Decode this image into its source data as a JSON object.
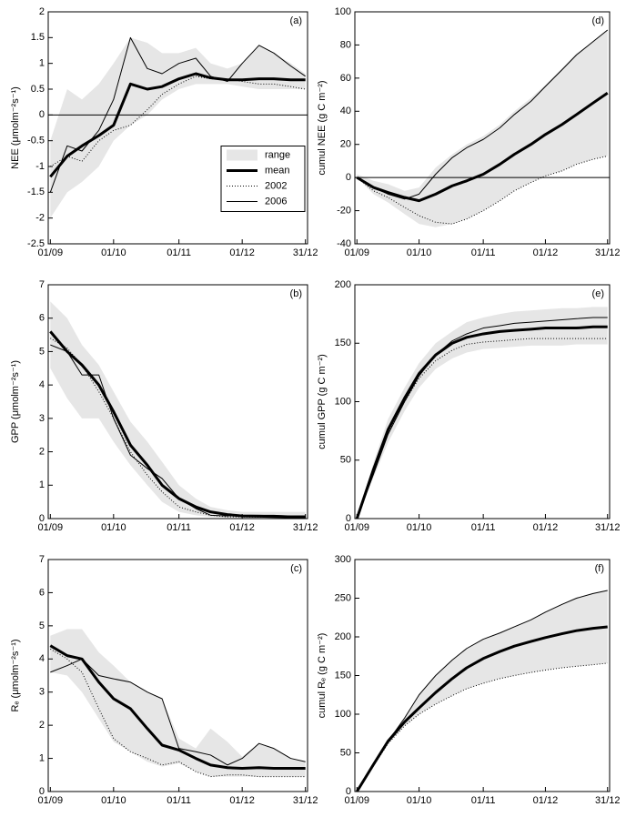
{
  "chart_data": [
    {
      "type": "line",
      "annotation": "(a)",
      "ylabel": "NEE (μmolm⁻²s⁻¹)",
      "legend": "center right",
      "hline": 0,
      "x": [
        0,
        8,
        15,
        23,
        30,
        38,
        46,
        53,
        61,
        69,
        76,
        84,
        91,
        99,
        106,
        114,
        121
      ],
      "xlim": [
        -1,
        122
      ],
      "xticks": [
        {
          "value": 0,
          "label": "01/09"
        },
        {
          "value": 30,
          "label": "01/10"
        },
        {
          "value": 61,
          "label": "01/11"
        },
        {
          "value": 91,
          "label": "01/12"
        },
        {
          "value": 121,
          "label": "31/12"
        }
      ],
      "ylim": [
        -2.5,
        2
      ],
      "yticks": [
        -2.5,
        -2,
        -1.5,
        -1,
        -0.5,
        0,
        0.5,
        1,
        1.5,
        2
      ],
      "series": [
        {
          "name": "range",
          "color": "#e6e6e6",
          "lower": [
            -2.0,
            -1.5,
            -1.3,
            -1.0,
            -0.5,
            -0.2,
            0.0,
            0.3,
            0.5,
            0.6,
            0.6,
            0.6,
            0.55,
            0.5,
            0.5,
            0.5,
            0.5
          ],
          "upper": [
            -0.5,
            0.5,
            0.3,
            0.6,
            1.0,
            1.5,
            1.4,
            1.2,
            1.2,
            1.3,
            1.0,
            0.9,
            1.0,
            1.35,
            1.2,
            1.0,
            0.8
          ]
        },
        {
          "name": "mean",
          "color": "#000000",
          "width": 3,
          "values": [
            -1.2,
            -0.8,
            -0.6,
            -0.4,
            -0.2,
            0.6,
            0.5,
            0.55,
            0.7,
            0.8,
            0.72,
            0.68,
            0.68,
            0.7,
            0.7,
            0.68,
            0.68
          ]
        },
        {
          "name": "2002",
          "color": "#000000",
          "width": 1,
          "dash": "dotted",
          "values": [
            -1.0,
            -0.8,
            -0.9,
            -0.5,
            -0.3,
            -0.2,
            0.1,
            0.4,
            0.6,
            0.75,
            0.7,
            0.7,
            0.65,
            0.6,
            0.6,
            0.55,
            0.5
          ]
        },
        {
          "name": "2006",
          "color": "#000000",
          "width": 1,
          "values": [
            -1.5,
            -0.6,
            -0.7,
            -0.3,
            0.3,
            1.5,
            0.9,
            0.8,
            1.0,
            1.1,
            0.75,
            0.65,
            1.0,
            1.35,
            1.2,
            0.95,
            0.75
          ]
        }
      ]
    },
    {
      "type": "line",
      "annotation": "(b)",
      "ylabel": "GPP (μmolm⁻²s⁻¹)",
      "x": [
        0,
        8,
        15,
        23,
        30,
        38,
        46,
        53,
        61,
        69,
        76,
        84,
        91,
        99,
        106,
        114,
        121
      ],
      "xlim": [
        -1,
        122
      ],
      "xticks": [
        {
          "value": 0,
          "label": "01/09"
        },
        {
          "value": 30,
          "label": "01/10"
        },
        {
          "value": 61,
          "label": "01/11"
        },
        {
          "value": 91,
          "label": "01/12"
        },
        {
          "value": 121,
          "label": "31/12"
        }
      ],
      "ylim": [
        0,
        7
      ],
      "yticks": [
        0,
        1,
        2,
        3,
        4,
        5,
        6,
        7
      ],
      "series": [
        {
          "name": "range",
          "color": "#e6e6e6",
          "lower": [
            4.5,
            3.6,
            3.0,
            3.0,
            2.3,
            1.6,
            1.0,
            0.5,
            0.2,
            0.1,
            0.05,
            0.03,
            0.02,
            0.02,
            0.02,
            0.02,
            0.02
          ],
          "upper": [
            6.5,
            6.0,
            5.2,
            4.6,
            3.8,
            2.9,
            2.3,
            1.7,
            1.0,
            0.6,
            0.35,
            0.25,
            0.2,
            0.2,
            0.2,
            0.2,
            0.2
          ]
        },
        {
          "name": "mean",
          "color": "#000000",
          "width": 3,
          "values": [
            5.6,
            5.0,
            4.6,
            4.0,
            3.2,
            2.2,
            1.6,
            1.0,
            0.6,
            0.35,
            0.2,
            0.12,
            0.08,
            0.07,
            0.06,
            0.05,
            0.05
          ]
        },
        {
          "name": "2002",
          "color": "#000000",
          "width": 1,
          "dash": "dotted",
          "values": [
            5.4,
            5.1,
            4.6,
            3.8,
            3.0,
            2.0,
            1.3,
            0.8,
            0.35,
            0.2,
            0.1,
            0.05,
            0.05,
            0.04,
            0.04,
            0.04,
            0.04
          ]
        },
        {
          "name": "2006",
          "color": "#000000",
          "width": 1,
          "values": [
            5.2,
            5.0,
            4.3,
            4.3,
            3.0,
            1.9,
            1.5,
            1.2,
            0.6,
            0.3,
            0.1,
            0.08,
            0.1,
            0.1,
            0.1,
            0.08,
            0.08
          ]
        }
      ]
    },
    {
      "type": "line",
      "annotation": "(c)",
      "ylabel": "Rₑ (μmolm⁻²s⁻¹)",
      "x": [
        0,
        8,
        15,
        23,
        30,
        38,
        46,
        53,
        61,
        69,
        76,
        84,
        91,
        99,
        106,
        114,
        121
      ],
      "xlim": [
        -1,
        122
      ],
      "xticks": [
        {
          "value": 0,
          "label": "01/09"
        },
        {
          "value": 30,
          "label": "01/10"
        },
        {
          "value": 61,
          "label": "01/11"
        },
        {
          "value": 91,
          "label": "01/12"
        },
        {
          "value": 121,
          "label": "31/12"
        }
      ],
      "ylim": [
        0,
        7
      ],
      "yticks": [
        0,
        1,
        2,
        3,
        4,
        5,
        6,
        7
      ],
      "series": [
        {
          "name": "range",
          "color": "#e6e6e6",
          "lower": [
            3.6,
            3.5,
            3.0,
            2.2,
            1.5,
            1.2,
            0.9,
            0.75,
            0.85,
            0.6,
            0.45,
            0.45,
            0.45,
            0.45,
            0.45,
            0.45,
            0.45
          ],
          "upper": [
            4.7,
            4.9,
            4.9,
            4.2,
            3.8,
            3.3,
            3.0,
            2.8,
            1.6,
            1.3,
            1.9,
            1.5,
            1.05,
            1.45,
            1.3,
            1.0,
            0.9
          ]
        },
        {
          "name": "mean",
          "color": "#000000",
          "width": 3,
          "values": [
            4.4,
            4.1,
            4.0,
            3.3,
            2.8,
            2.5,
            1.9,
            1.4,
            1.25,
            1.0,
            0.8,
            0.72,
            0.7,
            0.72,
            0.7,
            0.7,
            0.7
          ]
        },
        {
          "name": "2002",
          "color": "#000000",
          "width": 1,
          "dash": "dotted",
          "values": [
            4.3,
            4.0,
            3.6,
            2.5,
            1.6,
            1.2,
            1.0,
            0.8,
            0.9,
            0.6,
            0.45,
            0.5,
            0.5,
            0.45,
            0.45,
            0.45,
            0.45
          ]
        },
        {
          "name": "2006",
          "color": "#000000",
          "width": 1,
          "values": [
            3.6,
            3.8,
            4.0,
            3.5,
            3.4,
            3.3,
            3.0,
            2.8,
            1.3,
            1.2,
            1.1,
            0.8,
            1.0,
            1.45,
            1.3,
            1.0,
            0.9
          ]
        }
      ]
    },
    {
      "type": "line",
      "annotation": "(d)",
      "ylabel": "cumul NEE (g C m⁻²)",
      "hline": 0,
      "x": [
        0,
        8,
        15,
        23,
        30,
        38,
        46,
        53,
        61,
        69,
        76,
        84,
        91,
        99,
        106,
        114,
        121
      ],
      "xlim": [
        -1,
        122
      ],
      "xticks": [
        {
          "value": 0,
          "label": "01/09"
        },
        {
          "value": 30,
          "label": "01/10"
        },
        {
          "value": 61,
          "label": "01/11"
        },
        {
          "value": 91,
          "label": "01/12"
        },
        {
          "value": 121,
          "label": "31/12"
        }
      ],
      "ylim": [
        -40,
        100
      ],
      "yticks": [
        -40,
        -20,
        0,
        20,
        40,
        60,
        80,
        100
      ],
      "series": [
        {
          "name": "range",
          "color": "#e6e6e6",
          "lower": [
            0,
            -10,
            -15,
            -22,
            -28,
            -30,
            -28,
            -25,
            -20,
            -14,
            -8,
            -3,
            1,
            4,
            8,
            11,
            13
          ],
          "upper": [
            2,
            -2,
            -4,
            -8,
            -6,
            6,
            14,
            20,
            25,
            32,
            40,
            48,
            56,
            66,
            75,
            82,
            89
          ]
        },
        {
          "name": "mean",
          "color": "#000000",
          "width": 3,
          "values": [
            0,
            -6,
            -9,
            -12,
            -14,
            -10,
            -5,
            -2,
            2,
            8,
            14,
            20,
            26,
            32,
            38,
            45,
            51
          ]
        },
        {
          "name": "2002",
          "color": "#000000",
          "width": 1,
          "dash": "dotted",
          "values": [
            0,
            -8,
            -12,
            -18,
            -23,
            -27,
            -28,
            -25,
            -20,
            -14,
            -8,
            -3,
            1,
            4,
            8,
            11,
            13
          ]
        },
        {
          "name": "2006",
          "color": "#000000",
          "width": 1,
          "values": [
            0,
            -6,
            -10,
            -13,
            -10,
            2,
            12,
            18,
            23,
            30,
            38,
            46,
            55,
            65,
            74,
            82,
            89
          ]
        }
      ]
    },
    {
      "type": "line",
      "annotation": "(e)",
      "ylabel": "cumul GPP (g C m⁻²)",
      "x": [
        0,
        8,
        15,
        23,
        30,
        38,
        46,
        53,
        61,
        69,
        76,
        84,
        91,
        99,
        106,
        114,
        121
      ],
      "xlim": [
        -1,
        122
      ],
      "xticks": [
        {
          "value": 0,
          "label": "01/09"
        },
        {
          "value": 30,
          "label": "01/10"
        },
        {
          "value": 61,
          "label": "01/11"
        },
        {
          "value": 91,
          "label": "01/12"
        },
        {
          "value": 121,
          "label": "31/12"
        }
      ],
      "ylim": [
        0,
        200
      ],
      "yticks": [
        0,
        50,
        100,
        150,
        200
      ],
      "series": [
        {
          "name": "range",
          "color": "#e6e6e6",
          "lower": [
            0,
            35,
            65,
            92,
            112,
            128,
            137,
            142,
            145,
            146,
            147,
            148,
            148,
            148,
            149,
            149,
            149
          ],
          "upper": [
            0,
            48,
            85,
            112,
            133,
            150,
            160,
            168,
            172,
            175,
            177,
            178,
            179,
            180,
            180,
            181,
            181
          ]
        },
        {
          "name": "mean",
          "color": "#000000",
          "width": 3,
          "values": [
            0,
            42,
            76,
            103,
            124,
            140,
            150,
            155,
            158,
            160,
            161,
            162,
            163,
            163,
            163,
            164,
            164
          ]
        },
        {
          "name": "2002",
          "color": "#000000",
          "width": 1,
          "dash": "dotted",
          "values": [
            0,
            40,
            73,
            100,
            120,
            135,
            144,
            149,
            151,
            152,
            153,
            154,
            154,
            154,
            154,
            154,
            154
          ]
        },
        {
          "name": "2006",
          "color": "#000000",
          "width": 1,
          "values": [
            0,
            38,
            72,
            100,
            122,
            140,
            152,
            158,
            163,
            165,
            167,
            168,
            169,
            170,
            171,
            172,
            172
          ]
        }
      ]
    },
    {
      "type": "line",
      "annotation": "(f)",
      "ylabel": "cumul Rₑ (g C m⁻²)",
      "x": [
        0,
        8,
        15,
        23,
        30,
        38,
        46,
        53,
        61,
        69,
        76,
        84,
        91,
        99,
        106,
        114,
        121
      ],
      "xlim": [
        -1,
        122
      ],
      "xticks": [
        {
          "value": 0,
          "label": "01/09"
        },
        {
          "value": 30,
          "label": "01/10"
        },
        {
          "value": 61,
          "label": "01/11"
        },
        {
          "value": 91,
          "label": "01/12"
        },
        {
          "value": 121,
          "label": "31/12"
        }
      ],
      "ylim": [
        0,
        300
      ],
      "yticks": [
        0,
        50,
        100,
        150,
        200,
        250,
        300
      ],
      "series": [
        {
          "name": "range",
          "color": "#e6e6e6",
          "lower": [
            0,
            33,
            62,
            85,
            100,
            113,
            124,
            133,
            140,
            146,
            150,
            154,
            157,
            160,
            162,
            164,
            166
          ],
          "upper": [
            0,
            35,
            65,
            95,
            125,
            150,
            170,
            185,
            197,
            205,
            213,
            222,
            232,
            242,
            250,
            256,
            260
          ]
        },
        {
          "name": "mean",
          "color": "#000000",
          "width": 3,
          "values": [
            0,
            35,
            65,
            90,
            108,
            128,
            146,
            160,
            172,
            181,
            188,
            194,
            199,
            204,
            208,
            211,
            213
          ]
        },
        {
          "name": "2002",
          "color": "#000000",
          "width": 1,
          "dash": "dotted",
          "values": [
            0,
            33,
            62,
            85,
            100,
            113,
            124,
            133,
            140,
            146,
            150,
            154,
            157,
            160,
            162,
            164,
            166
          ]
        },
        {
          "name": "2006",
          "color": "#000000",
          "width": 1,
          "values": [
            0,
            35,
            65,
            95,
            125,
            150,
            170,
            185,
            197,
            205,
            213,
            222,
            232,
            242,
            250,
            256,
            260
          ]
        }
      ]
    }
  ]
}
